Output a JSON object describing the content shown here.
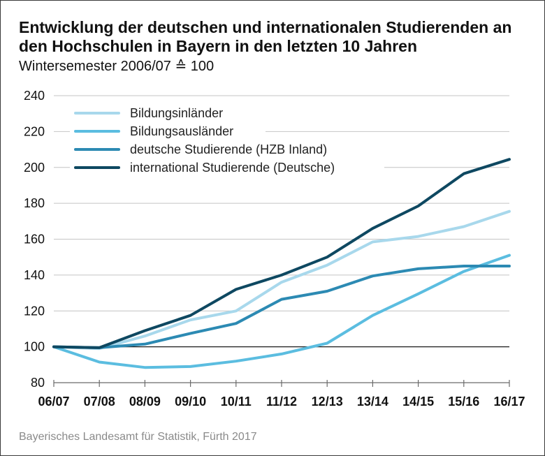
{
  "chart_data": {
    "type": "line",
    "title": "Entwicklung der deutschen und internationalen Studierenden an den Hochschulen in Bayern in den letzten 10 Jahren",
    "subtitle": "Wintersemester 2006/07 ≙ 100",
    "source": "Bayerisches Landesamt für Statistik, Fürth 2017",
    "categories": [
      "06/07",
      "07/08",
      "08/09",
      "09/10",
      "10/11",
      "11/12",
      "12/13",
      "13/14",
      "14/15",
      "15/16",
      "16/17"
    ],
    "ylim": [
      80,
      240
    ],
    "yticks": [
      80,
      100,
      120,
      140,
      160,
      180,
      200,
      220,
      240
    ],
    "reference_line": 100,
    "grid": true,
    "legend_position": "top-left",
    "series": [
      {
        "name": "Bildungsinländer",
        "color": "#a8d8ec",
        "values": [
          100,
          99,
          106,
          115,
          120,
          136,
          145.5,
          158.5,
          161.5,
          167,
          175.5
        ]
      },
      {
        "name": "Bildungsausländer",
        "color": "#5bbde0",
        "values": [
          100,
          91.5,
          88.5,
          89,
          92,
          96,
          102,
          117.5,
          129.5,
          142,
          151
        ]
      },
      {
        "name": "deutsche Studierende (HZB Inland)",
        "color": "#2c8ab3",
        "values": [
          100,
          99.5,
          101.5,
          107.5,
          113,
          126.5,
          131,
          139.5,
          143.5,
          145,
          145
        ]
      },
      {
        "name": "international Studierende (Deutsche)",
        "color": "#0e4861",
        "values": [
          100,
          99.5,
          109,
          117.5,
          132,
          140,
          150,
          166,
          178.5,
          196.5,
          204.5
        ]
      }
    ]
  }
}
